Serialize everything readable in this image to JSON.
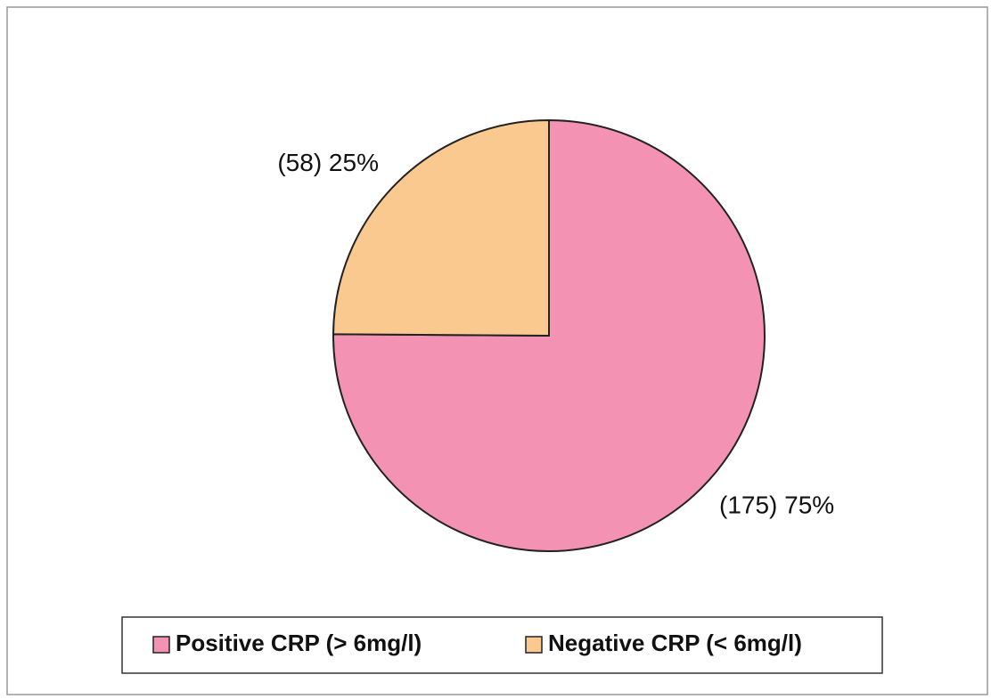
{
  "chart_data": {
    "type": "pie",
    "categories": [
      "Positive CRP (> 6mg/l)",
      "Negative CRP (< 6mg/l)"
    ],
    "values": [
      175,
      58
    ],
    "value_labels": [
      "(175) 75%",
      "(58) 25%"
    ],
    "colors": [
      "#f492b4",
      "#fac990"
    ],
    "legend": "bottom"
  }
}
